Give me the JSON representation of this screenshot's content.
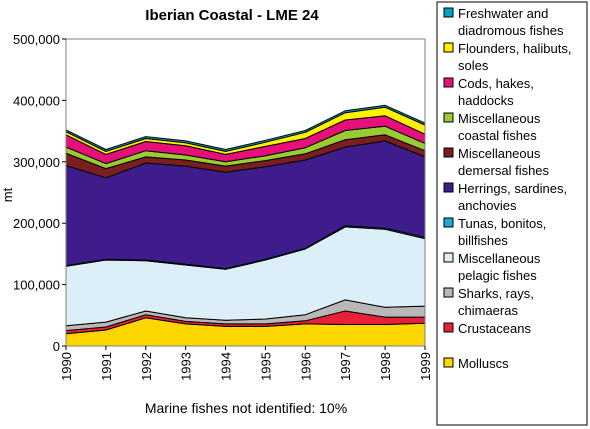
{
  "chart_data": {
    "type": "area",
    "stacked": true,
    "title": "Iberian Coastal - LME 24",
    "ylabel": "mt",
    "xlabel": "",
    "note": "Marine fishes not identified: 10%",
    "ylim": [
      0,
      500000
    ],
    "yticks": [
      "0",
      "100,000",
      "200,000",
      "300,000",
      "400,000",
      "500,000"
    ],
    "ytick_values": [
      0,
      100000,
      200000,
      300000,
      400000,
      500000
    ],
    "x": [
      "1990",
      "1991",
      "1992",
      "1993",
      "1994",
      "1995",
      "1996",
      "1997",
      "1998",
      "1999"
    ],
    "legend_position": "right",
    "series": [
      {
        "name": "Molluscs",
        "color": "#FFD700",
        "values": [
          20000,
          26000,
          46000,
          36000,
          32000,
          32000,
          36000,
          35000,
          35000,
          37000
        ]
      },
      {
        "name": "Crustaceans",
        "color": "#E8203A",
        "values": [
          5000,
          5000,
          5000,
          4000,
          4000,
          4000,
          5000,
          22000,
          12000,
          10000
        ]
      },
      {
        "name": "Sharks, rays, chimaeras",
        "color": "#B8B8B8",
        "values": [
          8000,
          8000,
          6000,
          6000,
          6000,
          8000,
          10000,
          18000,
          16000,
          18000
        ]
      },
      {
        "name": "Miscellaneous pelagic fishes",
        "color": "#DCEEF8",
        "values": [
          97000,
          101000,
          82000,
          86000,
          83000,
          96000,
          107000,
          119000,
          127000,
          110000
        ]
      },
      {
        "name": "Tunas, bonitos, billfishes",
        "color": "#22A6DA",
        "values": [
          1000,
          1000,
          1000,
          1000,
          1000,
          1000,
          1000,
          2000,
          2000,
          2000
        ]
      },
      {
        "name": "Herrings, sardines, anchovies",
        "color": "#3F1C8C",
        "values": [
          163000,
          133000,
          158000,
          160000,
          157000,
          151000,
          144000,
          128000,
          142000,
          131000
        ]
      },
      {
        "name": "Miscellaneous demersal fishes",
        "color": "#7A1E1E",
        "values": [
          20000,
          15000,
          10000,
          10000,
          10000,
          10000,
          10000,
          12000,
          10000,
          10000
        ]
      },
      {
        "name": "Miscellaneous coastal fishes",
        "color": "#99CC33",
        "values": [
          10000,
          8000,
          10000,
          8000,
          7000,
          8000,
          10000,
          15000,
          14000,
          12000
        ]
      },
      {
        "name": "Cods, hakes, haddocks",
        "color": "#E6107A",
        "values": [
          20000,
          15000,
          15000,
          15000,
          12000,
          15000,
          15000,
          17000,
          17000,
          15000
        ]
      },
      {
        "name": "Flounders, halibuts, soles",
        "color": "#FFF000",
        "values": [
          5000,
          5000,
          5000,
          5000,
          5000,
          7000,
          10000,
          12000,
          14000,
          15000
        ]
      },
      {
        "name": "Freshwater and diadromous fishes",
        "color": "#00A0C8",
        "values": [
          3000,
          3000,
          3000,
          3000,
          3000,
          3000,
          3000,
          3000,
          3000,
          3000
        ]
      }
    ],
    "legend": [
      {
        "series": 10,
        "lines": [
          "Freshwater and",
          "diadromous fishes"
        ]
      },
      {
        "series": 9,
        "lines": [
          "Flounders, halibuts,",
          "soles"
        ]
      },
      {
        "series": 8,
        "lines": [
          "Cods, hakes,",
          "haddocks"
        ]
      },
      {
        "series": 7,
        "lines": [
          "Miscellaneous",
          "coastal fishes"
        ]
      },
      {
        "series": 6,
        "lines": [
          "Miscellaneous",
          "demersal fishes"
        ]
      },
      {
        "series": 5,
        "lines": [
          "Herrings, sardines,",
          "anchovies"
        ]
      },
      {
        "series": 4,
        "lines": [
          "Tunas, bonitos,",
          "billfishes"
        ]
      },
      {
        "series": 3,
        "lines": [
          "Miscellaneous",
          "pelagic fishes"
        ]
      },
      {
        "series": 2,
        "lines": [
          "Sharks, rays,",
          "chimaeras"
        ]
      },
      {
        "series": 1,
        "lines": [
          "Crustaceans"
        ]
      },
      {
        "series": 0,
        "lines": [
          "Molluscs"
        ]
      }
    ]
  }
}
